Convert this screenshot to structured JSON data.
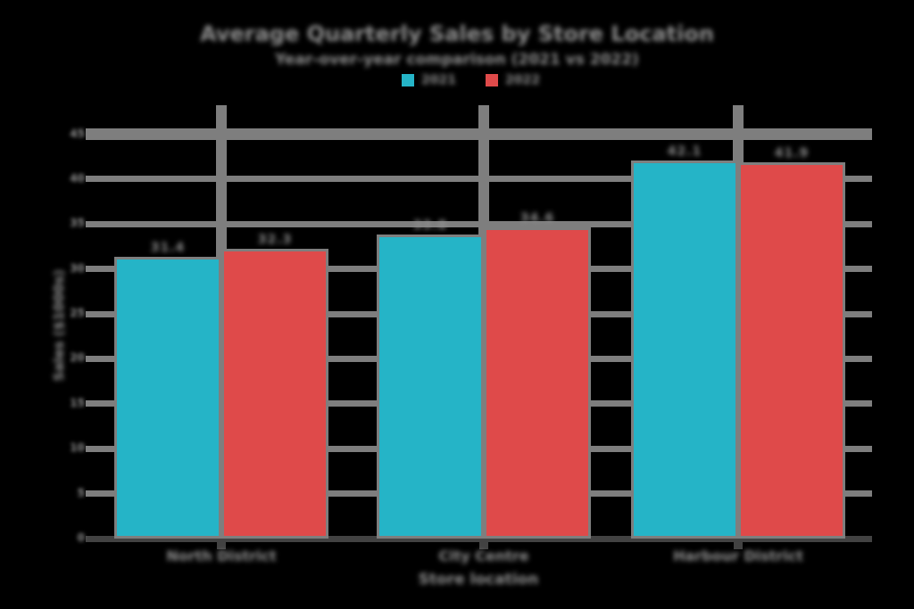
{
  "background": "#000000",
  "chart_data": {
    "type": "bar",
    "title": "Average Quarterly Sales by Store Location",
    "subtitle": "Year-over-year comparison (2021 vs 2022)",
    "xlabel": "Store location",
    "ylabel": "Sales ($1000s)",
    "categories": [
      "North District",
      "City Centre",
      "Harbour District"
    ],
    "series": [
      {
        "name": "2021",
        "color": "#25b4c7",
        "values": [
          31.4,
          33.8,
          42.1
        ]
      },
      {
        "name": "2022",
        "color": "#df4a4a",
        "values": [
          32.3,
          34.6,
          41.9
        ]
      }
    ],
    "value_labels": [
      [
        "31.4",
        "33.8",
        "42.1"
      ],
      [
        "32.3",
        "34.6",
        "41.9"
      ]
    ],
    "ylim": [
      0,
      45
    ],
    "yticks": [
      0,
      5,
      10,
      15,
      20,
      25,
      30,
      35,
      40,
      45
    ],
    "grid": "horizontal",
    "legend_position": "top"
  },
  "colors": {
    "grid": "#7e7e7e",
    "axis": "#424242",
    "text": "#8f8f8f"
  }
}
